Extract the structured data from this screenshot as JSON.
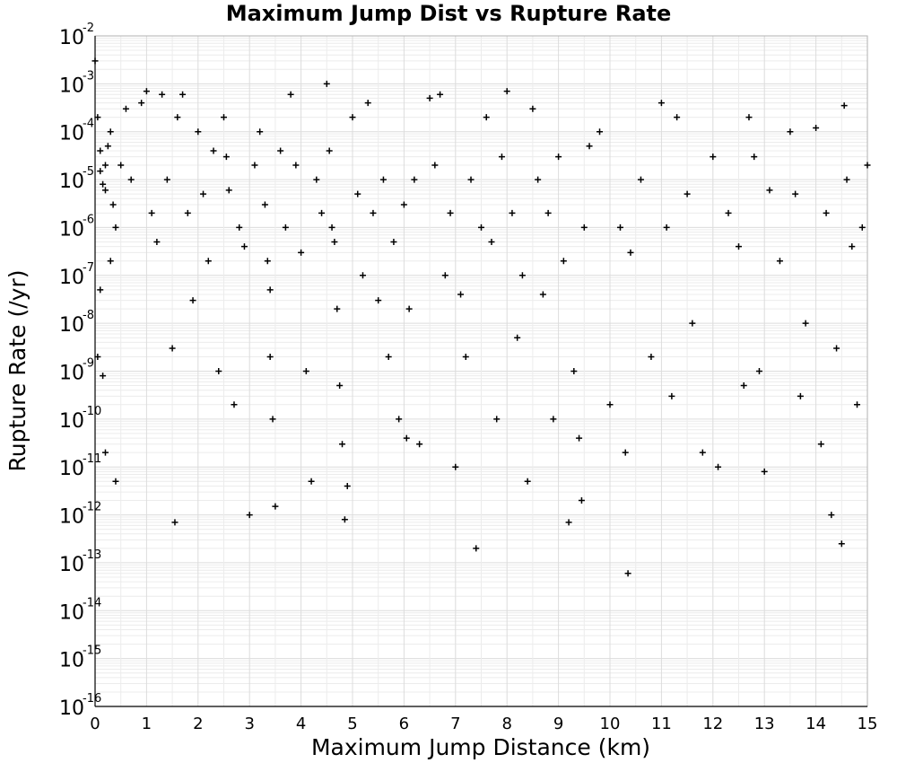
{
  "chart_data": {
    "type": "scatter",
    "title": "Maximum Jump Dist vs Rupture Rate",
    "xlabel": "Maximum Jump Distance (km)",
    "ylabel": "Rupture Rate (/yr)",
    "xlim": [
      0,
      15
    ],
    "ylim": [
      1e-16,
      0.01
    ],
    "yscale": "log",
    "grid": true,
    "marker": "plus",
    "marker_color": "#000000",
    "x_ticks": [
      "0",
      "1",
      "2",
      "3",
      "4",
      "5",
      "6",
      "7",
      "8",
      "9",
      "10",
      "11",
      "12",
      "13",
      "14",
      "15"
    ],
    "y_ticks": [
      {
        "base": "10",
        "exp": "-16"
      },
      {
        "base": "10",
        "exp": "-15"
      },
      {
        "base": "10",
        "exp": "-14"
      },
      {
        "base": "10",
        "exp": "-13"
      },
      {
        "base": "10",
        "exp": "-12"
      },
      {
        "base": "10",
        "exp": "-11"
      },
      {
        "base": "10",
        "exp": "-10"
      },
      {
        "base": "10",
        "exp": "-9"
      },
      {
        "base": "10",
        "exp": "-8"
      },
      {
        "base": "10",
        "exp": "-7"
      },
      {
        "base": "10",
        "exp": "-6"
      },
      {
        "base": "10",
        "exp": "-5"
      },
      {
        "base": "10",
        "exp": "-4"
      },
      {
        "base": "10",
        "exp": "-3"
      },
      {
        "base": "10",
        "exp": "-2"
      }
    ],
    "series": [
      {
        "points": [
          [
            0.0,
            0.003
          ],
          [
            0.05,
            0.0002
          ],
          [
            0.1,
            1.5e-05
          ],
          [
            0.15,
            8e-06
          ],
          [
            0.2,
            2e-05
          ],
          [
            0.25,
            5e-05
          ],
          [
            0.3,
            0.0001
          ],
          [
            0.1,
            4e-05
          ],
          [
            0.2,
            6e-06
          ],
          [
            0.35,
            3e-06
          ],
          [
            0.4,
            1e-06
          ],
          [
            0.3,
            2e-07
          ],
          [
            0.1,
            5e-08
          ],
          [
            0.05,
            2e-09
          ],
          [
            0.15,
            8e-10
          ],
          [
            0.2,
            2e-11
          ],
          [
            0.4,
            5e-12
          ],
          [
            0.5,
            2e-05
          ],
          [
            0.6,
            0.0003
          ],
          [
            0.7,
            1e-05
          ],
          [
            0.9,
            0.0004
          ],
          [
            1.0,
            0.0007
          ],
          [
            1.1,
            2e-06
          ],
          [
            1.2,
            5e-07
          ],
          [
            1.3,
            0.0006
          ],
          [
            1.4,
            1e-05
          ],
          [
            1.5,
            3e-09
          ],
          [
            1.55,
            7e-13
          ],
          [
            1.6,
            0.0002
          ],
          [
            1.7,
            0.0006
          ],
          [
            1.8,
            2e-06
          ],
          [
            1.9,
            3e-08
          ],
          [
            2.0,
            0.0001
          ],
          [
            2.1,
            5e-06
          ],
          [
            2.2,
            2e-07
          ],
          [
            2.3,
            4e-05
          ],
          [
            2.4,
            1e-09
          ],
          [
            2.5,
            0.0002
          ],
          [
            2.55,
            3e-05
          ],
          [
            2.6,
            6e-06
          ],
          [
            2.7,
            2e-10
          ],
          [
            2.8,
            1e-06
          ],
          [
            2.9,
            4e-07
          ],
          [
            3.0,
            1e-12
          ],
          [
            3.1,
            2e-05
          ],
          [
            3.2,
            0.0001
          ],
          [
            3.3,
            3e-06
          ],
          [
            3.35,
            2e-07
          ],
          [
            3.4,
            5e-08
          ],
          [
            3.4,
            2e-09
          ],
          [
            3.45,
            1e-10
          ],
          [
            3.5,
            1.5e-12
          ],
          [
            3.6,
            4e-05
          ],
          [
            3.7,
            1e-06
          ],
          [
            3.8,
            0.0006
          ],
          [
            3.9,
            2e-05
          ],
          [
            4.0,
            3e-07
          ],
          [
            4.1,
            1e-09
          ],
          [
            4.2,
            5e-12
          ],
          [
            4.3,
            1e-05
          ],
          [
            4.4,
            2e-06
          ],
          [
            4.5,
            0.001
          ],
          [
            4.55,
            4e-05
          ],
          [
            4.6,
            1e-06
          ],
          [
            4.65,
            5e-07
          ],
          [
            4.7,
            2e-08
          ],
          [
            4.75,
            5e-10
          ],
          [
            4.8,
            3e-11
          ],
          [
            4.85,
            8e-13
          ],
          [
            4.9,
            4e-12
          ],
          [
            5.0,
            0.0002
          ],
          [
            5.1,
            5e-06
          ],
          [
            5.2,
            1e-07
          ],
          [
            5.3,
            0.0004
          ],
          [
            5.4,
            2e-06
          ],
          [
            5.5,
            3e-08
          ],
          [
            5.6,
            1e-05
          ],
          [
            5.7,
            2e-09
          ],
          [
            5.8,
            5e-07
          ],
          [
            5.9,
            1e-10
          ],
          [
            6.0,
            3e-06
          ],
          [
            6.05,
            4e-11
          ],
          [
            6.1,
            2e-08
          ],
          [
            6.2,
            1e-05
          ],
          [
            6.3,
            3e-11
          ],
          [
            6.5,
            0.0005
          ],
          [
            6.6,
            2e-05
          ],
          [
            6.7,
            0.0006
          ],
          [
            6.8,
            1e-07
          ],
          [
            6.9,
            2e-06
          ],
          [
            7.0,
            1e-11
          ],
          [
            7.1,
            4e-08
          ],
          [
            7.2,
            2e-09
          ],
          [
            7.3,
            1e-05
          ],
          [
            7.4,
            2e-13
          ],
          [
            7.5,
            1e-06
          ],
          [
            7.6,
            0.0002
          ],
          [
            7.7,
            5e-07
          ],
          [
            7.8,
            1e-10
          ],
          [
            7.9,
            3e-05
          ],
          [
            8.0,
            0.0007
          ],
          [
            8.1,
            2e-06
          ],
          [
            8.2,
            5e-09
          ],
          [
            8.3,
            1e-07
          ],
          [
            8.4,
            5e-12
          ],
          [
            8.5,
            0.0003
          ],
          [
            8.6,
            1e-05
          ],
          [
            8.7,
            4e-08
          ],
          [
            8.8,
            2e-06
          ],
          [
            8.9,
            1e-10
          ],
          [
            9.0,
            3e-05
          ],
          [
            9.1,
            2e-07
          ],
          [
            9.2,
            7e-13
          ],
          [
            9.3,
            1e-09
          ],
          [
            9.4,
            4e-11
          ],
          [
            9.45,
            2e-12
          ],
          [
            9.5,
            1e-06
          ],
          [
            9.6,
            5e-05
          ],
          [
            9.8,
            0.0001
          ],
          [
            10.0,
            2e-10
          ],
          [
            10.2,
            1e-06
          ],
          [
            10.3,
            2e-11
          ],
          [
            10.35,
            6e-14
          ],
          [
            10.4,
            3e-07
          ],
          [
            10.6,
            1e-05
          ],
          [
            10.8,
            2e-09
          ],
          [
            11.0,
            0.0004
          ],
          [
            11.1,
            1e-06
          ],
          [
            11.2,
            3e-10
          ],
          [
            11.3,
            0.0002
          ],
          [
            11.5,
            5e-06
          ],
          [
            11.6,
            1e-08
          ],
          [
            11.8,
            2e-11
          ],
          [
            12.0,
            3e-05
          ],
          [
            12.1,
            1e-11
          ],
          [
            12.3,
            2e-06
          ],
          [
            12.5,
            4e-07
          ],
          [
            12.6,
            5e-10
          ],
          [
            12.7,
            0.0002
          ],
          [
            12.8,
            3e-05
          ],
          [
            12.9,
            1e-09
          ],
          [
            13.0,
            8e-12
          ],
          [
            13.1,
            6e-06
          ],
          [
            13.3,
            2e-07
          ],
          [
            13.5,
            0.0001
          ],
          [
            13.6,
            5e-06
          ],
          [
            13.7,
            3e-10
          ],
          [
            13.8,
            1e-08
          ],
          [
            14.0,
            0.00012
          ],
          [
            14.1,
            3e-11
          ],
          [
            14.2,
            2e-06
          ],
          [
            14.3,
            1e-12
          ],
          [
            14.4,
            3e-09
          ],
          [
            14.5,
            2.5e-13
          ],
          [
            14.55,
            0.00035
          ],
          [
            14.6,
            1e-05
          ],
          [
            14.7,
            4e-07
          ],
          [
            14.8,
            2e-10
          ],
          [
            14.9,
            1e-06
          ],
          [
            15.0,
            2e-05
          ]
        ]
      }
    ]
  }
}
